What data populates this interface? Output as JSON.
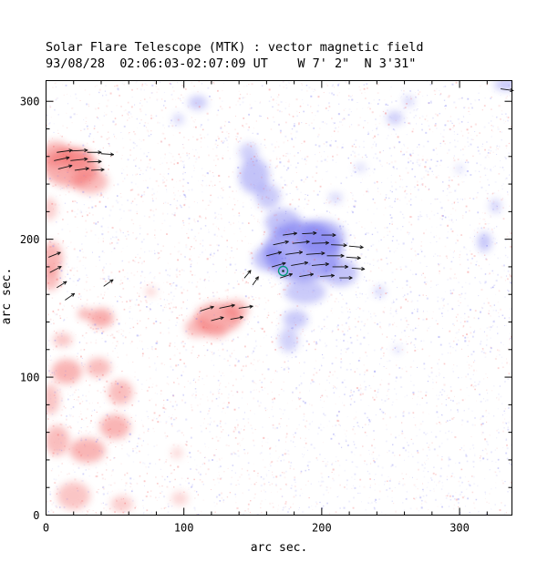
{
  "chart_data": {
    "type": "heatmap",
    "title": "Solar Flare Telescope (MTK) : vector magnetic field",
    "subtitle": "93/08/28  02:06:03-02:07:09 UT    W 7' 2\"  N 3'31\"",
    "xlabel": "arc sec.",
    "ylabel": "arc sec.",
    "xlim": [
      0,
      338
    ],
    "ylim": [
      0,
      315
    ],
    "xticks": [
      0,
      100,
      200,
      300
    ],
    "yticks": [
      0,
      100,
      200,
      300
    ],
    "minor_tick_step": 20,
    "colors": {
      "negative_polarity": "#f25c5c",
      "positive_polarity": "#6b6bef",
      "vector": "#111111",
      "marker_ring": "#00997a",
      "marker_center": "#1f4d44",
      "axis": "#000000",
      "background": "#ffffff"
    },
    "marker": {
      "x": 172,
      "y": 177
    },
    "red_blobs": [
      [
        18,
        252,
        20,
        14,
        0.5
      ],
      [
        7,
        262,
        11,
        9,
        0.45
      ],
      [
        32,
        242,
        13,
        9,
        0.4
      ],
      [
        22,
        258,
        10,
        8,
        0.4
      ],
      [
        2,
        222,
        6,
        8,
        0.3
      ],
      [
        4,
        186,
        8,
        12,
        0.45
      ],
      [
        3,
        171,
        7,
        8,
        0.4
      ],
      [
        28,
        146,
        5,
        4,
        0.45
      ],
      [
        40,
        143,
        9,
        7,
        0.5
      ],
      [
        12,
        127,
        7,
        5,
        0.35
      ],
      [
        76,
        162,
        4,
        3,
        0.3
      ],
      [
        125,
        143,
        17,
        11,
        0.5
      ],
      [
        138,
        149,
        9,
        7,
        0.4
      ],
      [
        110,
        136,
        9,
        7,
        0.4
      ],
      [
        123,
        133,
        8,
        5,
        0.35
      ],
      [
        15,
        104,
        11,
        9,
        0.45
      ],
      [
        38,
        107,
        9,
        7,
        0.4
      ],
      [
        54,
        89,
        9,
        9,
        0.4
      ],
      [
        50,
        64,
        11,
        9,
        0.45
      ],
      [
        30,
        47,
        13,
        9,
        0.45
      ],
      [
        8,
        54,
        9,
        11,
        0.4
      ],
      [
        3,
        84,
        7,
        11,
        0.35
      ],
      [
        20,
        14,
        12,
        10,
        0.35
      ],
      [
        55,
        8,
        8,
        6,
        0.3
      ],
      [
        97,
        12,
        6,
        5,
        0.25
      ],
      [
        95,
        45,
        4,
        4,
        0.25
      ]
    ],
    "blue_blobs": [
      [
        186,
        191,
        28,
        22,
        0.55
      ],
      [
        200,
        201,
        17,
        13,
        0.45
      ],
      [
        172,
        212,
        13,
        10,
        0.4
      ],
      [
        213,
        176,
        13,
        10,
        0.4
      ],
      [
        188,
        162,
        15,
        9,
        0.35
      ],
      [
        161,
        186,
        11,
        9,
        0.4
      ],
      [
        181,
        142,
        9,
        7,
        0.35
      ],
      [
        176,
        127,
        7,
        9,
        0.3
      ],
      [
        151,
        246,
        11,
        13,
        0.4
      ],
      [
        161,
        231,
        9,
        9,
        0.35
      ],
      [
        147,
        263,
        7,
        7,
        0.3
      ],
      [
        110,
        299,
        7,
        5,
        0.35
      ],
      [
        96,
        287,
        4,
        4,
        0.28
      ],
      [
        253,
        288,
        6,
        5,
        0.32
      ],
      [
        263,
        300,
        4,
        4,
        0.28
      ],
      [
        334,
        312,
        9,
        4,
        0.4
      ],
      [
        318,
        198,
        5,
        7,
        0.38
      ],
      [
        326,
        224,
        4,
        5,
        0.3
      ],
      [
        300,
        251,
        3,
        3,
        0.25
      ],
      [
        242,
        162,
        4,
        4,
        0.28
      ],
      [
        228,
        252,
        4,
        3,
        0.25
      ],
      [
        210,
        230,
        5,
        4,
        0.25
      ],
      [
        255,
        120,
        3,
        3,
        0.22
      ]
    ],
    "vectors": [
      [
        8,
        263,
        8,
        11
      ],
      [
        19,
        264,
        3,
        11
      ],
      [
        30,
        263,
        0,
        10
      ],
      [
        40,
        262,
        -4,
        9
      ],
      [
        6,
        257,
        12,
        11
      ],
      [
        18,
        257,
        6,
        12
      ],
      [
        30,
        256,
        2,
        10
      ],
      [
        9,
        251,
        14,
        10
      ],
      [
        21,
        250,
        8,
        10
      ],
      [
        33,
        250,
        3,
        9
      ],
      [
        2,
        187,
        22,
        9
      ],
      [
        3,
        176,
        28,
        9
      ],
      [
        8,
        165,
        32,
        8
      ],
      [
        14,
        156,
        35,
        8
      ],
      [
        42,
        166,
        35,
        8
      ],
      [
        112,
        148,
        18,
        10
      ],
      [
        126,
        150,
        12,
        11
      ],
      [
        140,
        150,
        8,
        10
      ],
      [
        120,
        141,
        15,
        9
      ],
      [
        134,
        142,
        10,
        9
      ],
      [
        144,
        172,
        50,
        7
      ],
      [
        150,
        167,
        55,
        7
      ],
      [
        165,
        196,
        12,
        11
      ],
      [
        179,
        197,
        6,
        12
      ],
      [
        193,
        197,
        2,
        12
      ],
      [
        207,
        196,
        -2,
        11
      ],
      [
        220,
        195,
        -5,
        10
      ],
      [
        160,
        188,
        14,
        11
      ],
      [
        174,
        189,
        8,
        12
      ],
      [
        189,
        189,
        4,
        13
      ],
      [
        204,
        188,
        0,
        12
      ],
      [
        218,
        187,
        -4,
        10
      ],
      [
        164,
        180,
        16,
        10
      ],
      [
        178,
        181,
        10,
        12
      ],
      [
        193,
        181,
        5,
        12
      ],
      [
        208,
        180,
        0,
        11
      ],
      [
        222,
        179,
        -4,
        9
      ],
      [
        170,
        172,
        18,
        9
      ],
      [
        184,
        173,
        10,
        10
      ],
      [
        199,
        173,
        4,
        10
      ],
      [
        213,
        172,
        0,
        9
      ],
      [
        172,
        203,
        8,
        10
      ],
      [
        186,
        204,
        3,
        10
      ],
      [
        200,
        203,
        0,
        10
      ],
      [
        330,
        309,
        -8,
        9
      ]
    ],
    "noise": {
      "count": 5500,
      "seed": 11
    }
  }
}
